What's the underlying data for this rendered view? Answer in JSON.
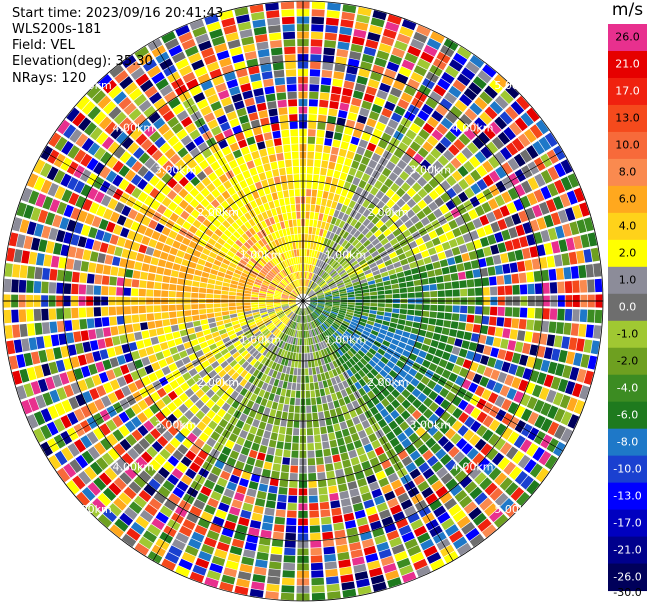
{
  "header": {
    "start_time": "Start time: 2023/09/16 20:41:43",
    "instrument": "WLS200s-181",
    "field": "Field: VEL",
    "elevation": "Elevation(deg): 35.30",
    "nrays": "NRays: 120"
  },
  "colorbar": {
    "unit": "m/s",
    "levels": [
      {
        "label": "26.0",
        "color": "#e8308e"
      },
      {
        "label": "21.0",
        "color": "#e60000"
      },
      {
        "label": "17.0",
        "color": "#f0210f"
      },
      {
        "label": "13.0",
        "color": "#f54a1c"
      },
      {
        "label": "10.0",
        "color": "#f76a3a"
      },
      {
        "label": "8.0",
        "color": "#fa8a4f"
      },
      {
        "label": "6.0",
        "color": "#ffa81e"
      },
      {
        "label": "4.0",
        "color": "#ffd21a"
      },
      {
        "label": "2.0",
        "color": "#ffff00"
      },
      {
        "label": "1.0",
        "color": "#8c8c99"
      },
      {
        "label": "0.0",
        "color": "#6e6e6e"
      },
      {
        "label": "-1.0",
        "color": "#a0c832"
      },
      {
        "label": "-2.0",
        "color": "#6ea020"
      },
      {
        "label": "-4.0",
        "color": "#3c8c22"
      },
      {
        "label": "-6.0",
        "color": "#1e7a1e"
      },
      {
        "label": "-8.0",
        "color": "#1e78c8"
      },
      {
        "label": "-10.0",
        "color": "#1a40d0"
      },
      {
        "label": "-13.0",
        "color": "#0000ff"
      },
      {
        "label": "-17.0",
        "color": "#0000c0"
      },
      {
        "label": "-21.0",
        "color": "#00008c"
      },
      {
        "label": "-26.0",
        "color": "#00005a"
      }
    ],
    "bottom_label": "-30.0"
  },
  "chart_data": {
    "type": "heatmap",
    "projection": "polar",
    "field": "VEL",
    "units": "m/s",
    "nrays": 120,
    "range_rings_km": [
      "1.00km",
      "2.00km",
      "3.00km",
      "4.00km",
      "5.00km"
    ],
    "dominant_pattern": [
      {
        "sector": "north-west",
        "value_range": "2.0 to 8.0 m/s",
        "color_group": "yellow/orange"
      },
      {
        "sector": "east to south-east",
        "value_range": "-1.0 to -10.0 m/s",
        "color_group": "green/blue"
      },
      {
        "sector": "south",
        "value_range": "-2.0 to 1.0 m/s",
        "color_group": "olive/gray"
      },
      {
        "sector": "outer ring",
        "value_range": "-30.0 to 26.0 m/s",
        "color_group": "noisy, all colors"
      }
    ],
    "colorbar_ticks": [
      26.0,
      21.0,
      17.0,
      13.0,
      10.0,
      8.0,
      6.0,
      4.0,
      2.0,
      1.0,
      0.0,
      -1.0,
      -2.0,
      -4.0,
      -6.0,
      -8.0,
      -10.0,
      -13.0,
      -17.0,
      -21.0,
      -26.0,
      -30.0
    ]
  }
}
